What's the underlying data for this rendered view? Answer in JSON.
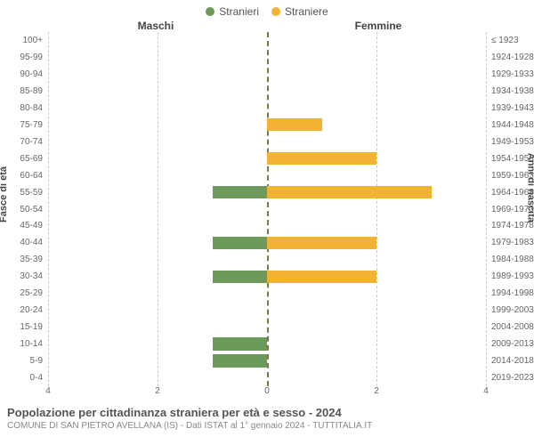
{
  "legend": {
    "male": {
      "label": "Stranieri",
      "color": "#6b9a5b"
    },
    "female": {
      "label": "Straniere",
      "color": "#f2b233"
    }
  },
  "headings": {
    "male": "Maschi",
    "female": "Femmine"
  },
  "axis": {
    "left_title": "Fasce di età",
    "right_title": "Anni di nascita",
    "xmax": 4,
    "xticks": [
      4,
      2,
      0,
      2,
      4
    ]
  },
  "rows": [
    {
      "age": "100+",
      "birth": "≤ 1923",
      "m": 0,
      "f": 0
    },
    {
      "age": "95-99",
      "birth": "1924-1928",
      "m": 0,
      "f": 0
    },
    {
      "age": "90-94",
      "birth": "1929-1933",
      "m": 0,
      "f": 0
    },
    {
      "age": "85-89",
      "birth": "1934-1938",
      "m": 0,
      "f": 0
    },
    {
      "age": "80-84",
      "birth": "1939-1943",
      "m": 0,
      "f": 0
    },
    {
      "age": "75-79",
      "birth": "1944-1948",
      "m": 0,
      "f": 1
    },
    {
      "age": "70-74",
      "birth": "1949-1953",
      "m": 0,
      "f": 0
    },
    {
      "age": "65-69",
      "birth": "1954-1958",
      "m": 0,
      "f": 2
    },
    {
      "age": "60-64",
      "birth": "1959-1963",
      "m": 0,
      "f": 0
    },
    {
      "age": "55-59",
      "birth": "1964-1968",
      "m": 1,
      "f": 3
    },
    {
      "age": "50-54",
      "birth": "1969-1973",
      "m": 0,
      "f": 0
    },
    {
      "age": "45-49",
      "birth": "1974-1978",
      "m": 0,
      "f": 0
    },
    {
      "age": "40-44",
      "birth": "1979-1983",
      "m": 1,
      "f": 2
    },
    {
      "age": "35-39",
      "birth": "1984-1988",
      "m": 0,
      "f": 0
    },
    {
      "age": "30-34",
      "birth": "1989-1993",
      "m": 1,
      "f": 2
    },
    {
      "age": "25-29",
      "birth": "1994-1998",
      "m": 0,
      "f": 0
    },
    {
      "age": "20-24",
      "birth": "1999-2003",
      "m": 0,
      "f": 0
    },
    {
      "age": "15-19",
      "birth": "2004-2008",
      "m": 0,
      "f": 0
    },
    {
      "age": "10-14",
      "birth": "2009-2013",
      "m": 1,
      "f": 0
    },
    {
      "age": "5-9",
      "birth": "2014-2018",
      "m": 1,
      "f": 0
    },
    {
      "age": "0-4",
      "birth": "2019-2023",
      "m": 0,
      "f": 0
    }
  ],
  "style": {
    "grid_color": "#cccccc",
    "center_color": "#7a7a3c",
    "background": "#ffffff",
    "label_fontsize": 10,
    "title_fontsize": 13
  },
  "footer": {
    "title": "Popolazione per cittadinanza straniera per età e sesso - 2024",
    "subtitle": "COMUNE DI SAN PIETRO AVELLANA (IS) - Dati ISTAT al 1° gennaio 2024 - TUTTITALIA.IT"
  }
}
